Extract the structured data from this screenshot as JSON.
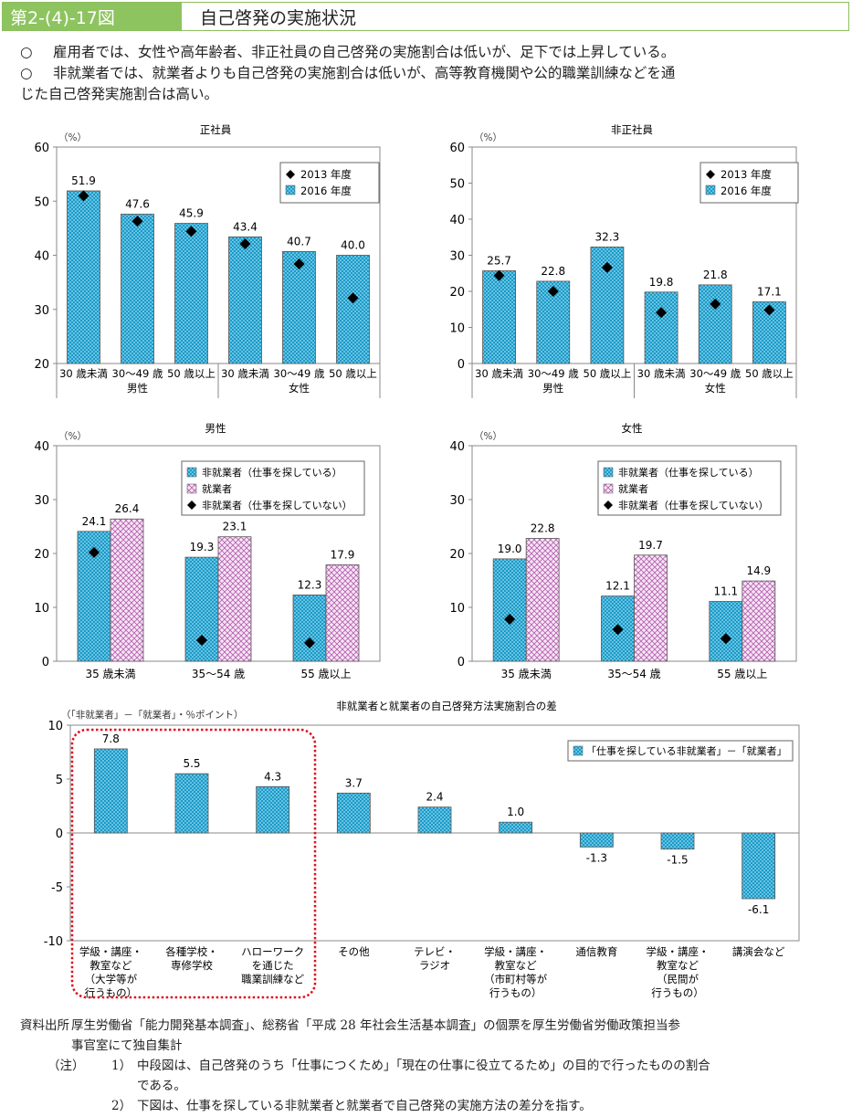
{
  "header": {
    "figure_number": "第2-(4)-17図",
    "title": "自己啓発の実施状況"
  },
  "summary": [
    {
      "bullet": "○",
      "text": "雇用者では、女性や高年齢者、非正社員の自己啓発の実施割合は低いが、足下では上昇している。"
    },
    {
      "bullet": "○",
      "text": "非就業者では、就業者よりも自己啓発の実施割合は低いが、高等教育機関や公的職業訓練などを通",
      "cont": "じた自己啓発実施割合は高い。"
    }
  ],
  "colors": {
    "blue": "#1b9ac8",
    "pink": "#e2bde0",
    "marker": "#000000",
    "highlight": "#e0101e"
  },
  "chart_data": [
    {
      "id": "seishain",
      "type": "bar",
      "title": "正社員",
      "ylabel": "（%）",
      "ylim": [
        20,
        60
      ],
      "yticks": [
        20,
        30,
        40,
        50,
        60
      ],
      "categories": [
        "30歳未満",
        "30～49歳",
        "50歳以上",
        "30歳未満",
        "30～49歳",
        "50歳以上"
      ],
      "groups": [
        "男性",
        "女性"
      ],
      "series": [
        {
          "name": "2013年度",
          "kind": "marker",
          "values": [
            51.0,
            46.3,
            44.4,
            42.1,
            38.4,
            32.1
          ]
        },
        {
          "name": "2016年度",
          "kind": "bar",
          "values": [
            51.9,
            47.6,
            45.9,
            43.4,
            40.7,
            40.0
          ],
          "labels": [
            "51.9",
            "47.6",
            "45.9",
            "43.4",
            "40.7",
            "40.0"
          ]
        }
      ],
      "legend": [
        "2013 年度",
        "2016 年度"
      ],
      "legend_position": "top-right"
    },
    {
      "id": "hiseishain",
      "type": "bar",
      "title": "非正社員",
      "ylabel": "（%）",
      "ylim": [
        0,
        60
      ],
      "yticks": [
        0,
        10,
        20,
        30,
        40,
        50,
        60
      ],
      "categories": [
        "30歳未満",
        "30～49歳",
        "50歳以上",
        "30歳未満",
        "30～49歳",
        "50歳以上"
      ],
      "groups": [
        "男性",
        "女性"
      ],
      "series": [
        {
          "name": "2013年度",
          "kind": "marker",
          "values": [
            24.4,
            20.0,
            26.6,
            14.1,
            16.5,
            14.8
          ]
        },
        {
          "name": "2016年度",
          "kind": "bar",
          "values": [
            25.7,
            22.8,
            32.3,
            19.8,
            21.8,
            17.1
          ],
          "labels": [
            "25.7",
            "22.8",
            "32.3",
            "19.8",
            "21.8",
            "17.1"
          ]
        }
      ],
      "legend": [
        "2013 年度",
        "2016 年度"
      ],
      "legend_position": "top-right"
    },
    {
      "id": "dansei",
      "type": "bar",
      "title": "男性",
      "ylabel": "（%）",
      "ylim": [
        0,
        40
      ],
      "yticks": [
        0,
        10,
        20,
        30,
        40
      ],
      "categories": [
        "35 歳未満",
        "35～54 歳",
        "55 歳以上"
      ],
      "series": [
        {
          "name": "非就業者（仕事を探している）",
          "kind": "bar",
          "color": "blue",
          "values": [
            24.1,
            19.3,
            12.3
          ],
          "labels": [
            "24.1",
            "19.3",
            "12.3"
          ]
        },
        {
          "name": "就業者",
          "kind": "bar",
          "color": "pink",
          "values": [
            26.4,
            23.1,
            17.9
          ],
          "labels": [
            "26.4",
            "23.1",
            "17.9"
          ]
        },
        {
          "name": "非就業者（仕事を探していない）",
          "kind": "marker",
          "values": [
            20.2,
            3.9,
            3.4
          ]
        }
      ],
      "legend_position": "top-right"
    },
    {
      "id": "josei",
      "type": "bar",
      "title": "女性",
      "ylabel": "（%）",
      "ylim": [
        0,
        40
      ],
      "yticks": [
        0,
        10,
        20,
        30,
        40
      ],
      "categories": [
        "35 歳未満",
        "35～54 歳",
        "55 歳以上"
      ],
      "series": [
        {
          "name": "非就業者（仕事を探している）",
          "kind": "bar",
          "color": "blue",
          "values": [
            19.0,
            12.1,
            11.1
          ],
          "labels": [
            "19.0",
            "12.1",
            "11.1"
          ]
        },
        {
          "name": "就業者",
          "kind": "bar",
          "color": "pink",
          "values": [
            22.8,
            19.7,
            14.9
          ],
          "labels": [
            "22.8",
            "19.7",
            "14.9"
          ]
        },
        {
          "name": "非就業者（仕事を探していない）",
          "kind": "marker",
          "values": [
            7.8,
            5.9,
            4.2
          ]
        }
      ],
      "legend_position": "top-right"
    },
    {
      "id": "diff",
      "type": "bar",
      "title": "非就業者と就業者の自己啓発方法実施割合の差",
      "ylabel": "（「非就業者」－「就業者」・％ポイント）",
      "ylim": [
        -10,
        10
      ],
      "yticks": [
        -10,
        -5,
        0,
        5,
        10
      ],
      "categories": [
        [
          "学級・講座・",
          "教室など",
          "（大学等が",
          "行うもの）"
        ],
        [
          "各種学校・",
          "専修学校"
        ],
        [
          "ハローワーク",
          "を通じた",
          "職業訓練など"
        ],
        [
          "その他"
        ],
        [
          "テレビ・",
          "ラジオ"
        ],
        [
          "学級・講座・",
          "教室など",
          "（市町村等が",
          "行うもの）"
        ],
        [
          "通信教育"
        ],
        [
          "学級・講座・",
          "教室など",
          "（民間が",
          "行うもの）"
        ],
        [
          "講演会など"
        ]
      ],
      "series": [
        {
          "name": "「仕事を探している非就業者」－「就業者」",
          "kind": "bar",
          "values": [
            7.8,
            5.5,
            4.3,
            3.7,
            2.4,
            1.0,
            -1.3,
            -1.5,
            -6.1
          ],
          "labels": [
            "7.8",
            "5.5",
            "4.3",
            "3.7",
            "2.4",
            "1.0",
            "-1.3",
            "-1.5",
            "-6.1"
          ]
        }
      ],
      "highlight_categories": [
        0,
        1,
        2
      ],
      "legend_position": "top-right"
    }
  ],
  "footer": {
    "source_label": "資料出所",
    "source_text": "厚生労働省「能力開発基本調査」、総務省「平成 28 年社会生活基本調査」の個票を厚生労働省労働政策担当参",
    "source_cont": "事官室にて独自集計",
    "note_label": "（注）",
    "notes": [
      {
        "num": "1）",
        "text": "中段図は、自己啓発のうち「仕事につくため」「現在の仕事に役立てるため」の目的で行ったものの割合",
        "cont": "である。"
      },
      {
        "num": "2）",
        "text": "下図は、仕事を探している非就業者と就業者で自己啓発の実施方法の差分を指す。"
      }
    ]
  }
}
